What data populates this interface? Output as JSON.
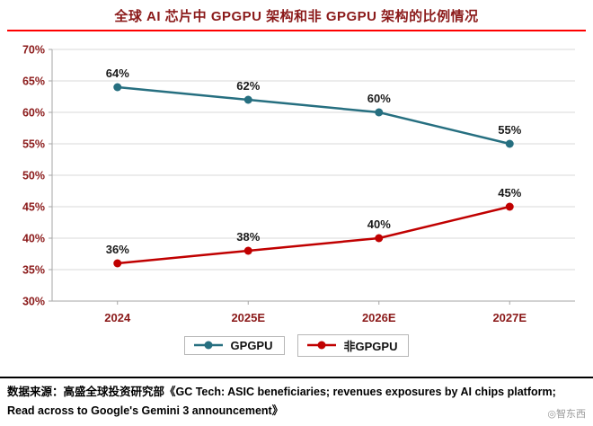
{
  "page": {
    "title": "全球 AI 芯片中 GPGPU 架构和非 GPGPU 架构的比例情况",
    "watermark": "◎智东西",
    "colors": {
      "title": "#8b1a1a",
      "title_underline": "#ff0000"
    }
  },
  "footer": {
    "line1": "数据来源：高盛全球投资研究部《GC Tech: ASIC beneficiaries; revenues exposures by AI chips platform;",
    "line2": "Read across to Google's Gemini 3 announcement》"
  },
  "chart_data": {
    "type": "line",
    "title": "全球 AI 芯片中 GPGPU 架构和非 GPGPU 架构的比例情况",
    "categories": [
      "2024",
      "2025E",
      "2026E",
      "2027E"
    ],
    "series": [
      {
        "name": "GPGPU",
        "color": "#266f80",
        "values": [
          64,
          62,
          60,
          55
        ]
      },
      {
        "name": "非GPGPU",
        "color": "#c00000",
        "values": [
          36,
          38,
          40,
          45
        ]
      }
    ],
    "ylim": [
      30,
      70
    ],
    "ytick_step": 5,
    "ytick_suffix": "%",
    "grid": true,
    "legend_position": "bottom",
    "colors": {
      "axis_label": "#8b1a1a",
      "grid": "#d9d9d9",
      "axis_line": "#a6a6a6",
      "data_label": "#1a1a1a"
    }
  }
}
